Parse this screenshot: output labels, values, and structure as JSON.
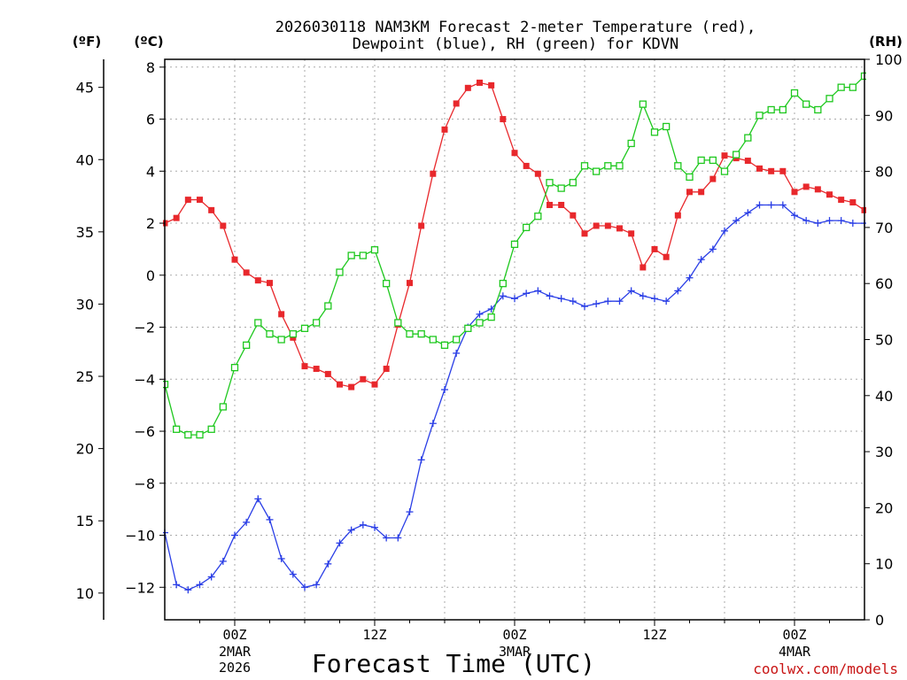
{
  "chart_data": {
    "type": "line",
    "title_line1": "2026030118 NAM3KM Forecast 2-meter Temperature (red),",
    "title_line2": "Dewpoint (blue), RH (green) for KDVN",
    "xlabel": "Forecast Time (UTC)",
    "watermark": "coolwx.com/models",
    "units": {
      "fahrenheit": "(ºF)",
      "celsius": "(ºC)",
      "rh": "(RH)"
    },
    "x_hours_range": [
      -6,
      54
    ],
    "x_ticks": [
      {
        "hour": 0,
        "label": "00Z",
        "sub1": "2MAR",
        "sub2": "2026"
      },
      {
        "hour": 12,
        "label": "12Z",
        "sub1": "",
        "sub2": ""
      },
      {
        "hour": 24,
        "label": "00Z",
        "sub1": "3MAR",
        "sub2": ""
      },
      {
        "hour": 36,
        "label": "12Z",
        "sub1": "",
        "sub2": ""
      },
      {
        "hour": 48,
        "label": "00Z",
        "sub1": "4MAR",
        "sub2": ""
      }
    ],
    "celsius_axis": {
      "range": [
        -13.25,
        8.3
      ],
      "ticks": [
        8,
        6,
        4,
        2,
        0,
        -2,
        -4,
        -6,
        -8,
        -10,
        -12
      ]
    },
    "fahrenheit_axis": {
      "ticks": [
        45,
        40,
        35,
        30,
        25,
        20,
        15,
        10
      ]
    },
    "rh_axis": {
      "range": [
        0,
        100
      ],
      "ticks": [
        100,
        90,
        80,
        70,
        60,
        50,
        40,
        30,
        20,
        10,
        0
      ]
    },
    "grid": true,
    "colors": {
      "temperature": "#e8282c",
      "dewpoint": "#2a3ee6",
      "rh": "#1ec81e",
      "watermark": "#c81414"
    },
    "series": [
      {
        "name": "Temperature",
        "axis": "celsius",
        "marker": "filled-square",
        "x": [
          -6,
          -5,
          -4,
          -3,
          -2,
          -1,
          0,
          1,
          2,
          3,
          4,
          5,
          6,
          7,
          8,
          9,
          10,
          11,
          12,
          13,
          14,
          15,
          16,
          17,
          18,
          19,
          20,
          21,
          22,
          23,
          24,
          25,
          26,
          27,
          28,
          29,
          30,
          31,
          32,
          33,
          34,
          35,
          36,
          37,
          38,
          39,
          40,
          41,
          42,
          43,
          44,
          45,
          46,
          47,
          48,
          49,
          50,
          51,
          52,
          53,
          54
        ],
        "values": [
          2.0,
          2.2,
          2.9,
          2.9,
          2.5,
          1.9,
          0.6,
          0.1,
          -0.2,
          -0.3,
          -1.5,
          -2.4,
          -3.5,
          -3.6,
          -3.8,
          -4.2,
          -4.3,
          -4.0,
          -4.2,
          -3.6,
          -1.9,
          -0.3,
          1.9,
          3.9,
          5.6,
          6.6,
          7.2,
          7.4,
          7.3,
          6.0,
          4.7,
          4.2,
          3.9,
          2.7,
          2.7,
          2.3,
          1.6,
          1.9,
          1.9,
          1.8,
          1.6,
          0.3,
          1.0,
          0.7,
          2.3,
          3.2,
          3.2,
          3.7,
          4.6,
          4.5,
          4.4,
          4.1,
          4.0,
          4.0,
          3.2,
          3.4,
          3.3,
          3.1,
          2.9,
          2.8,
          2.5
        ]
      },
      {
        "name": "Dewpoint",
        "axis": "celsius",
        "marker": "plus",
        "x": [
          -6,
          -5,
          -4,
          -3,
          -2,
          -1,
          0,
          1,
          2,
          3,
          4,
          5,
          6,
          7,
          8,
          9,
          10,
          11,
          12,
          13,
          14,
          15,
          16,
          17,
          18,
          19,
          20,
          21,
          22,
          23,
          24,
          25,
          26,
          27,
          28,
          29,
          30,
          31,
          32,
          33,
          34,
          35,
          36,
          37,
          38,
          39,
          40,
          41,
          42,
          43,
          44,
          45,
          46,
          47,
          48,
          49,
          50,
          51,
          52,
          53,
          54
        ],
        "values": [
          -9.9,
          -11.9,
          -12.1,
          -11.9,
          -11.6,
          -11.0,
          -10.0,
          -9.5,
          -8.6,
          -9.4,
          -10.9,
          -11.5,
          -12.0,
          -11.9,
          -11.1,
          -10.3,
          -9.8,
          -9.6,
          -9.7,
          -10.1,
          -10.1,
          -9.1,
          -7.1,
          -5.7,
          -4.4,
          -3.0,
          -2.0,
          -1.5,
          -1.3,
          -0.8,
          -0.9,
          -0.7,
          -0.6,
          -0.8,
          -0.9,
          -1.0,
          -1.2,
          -1.1,
          -1.0,
          -1.0,
          -0.6,
          -0.8,
          -0.9,
          -1.0,
          -0.6,
          -0.1,
          0.6,
          1.0,
          1.7,
          2.1,
          2.4,
          2.7,
          2.7,
          2.7,
          2.3,
          2.1,
          2.0,
          2.1,
          2.1,
          2.0,
          2.0
        ]
      },
      {
        "name": "RH",
        "axis": "rh",
        "marker": "open-square",
        "x": [
          -6,
          -5,
          -4,
          -3,
          -2,
          -1,
          0,
          1,
          2,
          3,
          4,
          5,
          6,
          7,
          8,
          9,
          10,
          11,
          12,
          13,
          14,
          15,
          16,
          17,
          18,
          19,
          20,
          21,
          22,
          23,
          24,
          25,
          26,
          27,
          28,
          29,
          30,
          31,
          32,
          33,
          34,
          35,
          36,
          37,
          38,
          39,
          40,
          41,
          42,
          43,
          44,
          45,
          46,
          47,
          48,
          49,
          50,
          51,
          52,
          53,
          54
        ],
        "values": [
          42,
          34,
          33,
          33,
          34,
          38,
          45,
          49,
          53,
          51,
          50,
          51,
          52,
          53,
          56,
          62,
          65,
          65,
          66,
          60,
          53,
          51,
          51,
          50,
          49,
          50,
          52,
          53,
          54,
          60,
          67,
          70,
          72,
          78,
          77,
          78,
          81,
          80,
          81,
          81,
          85,
          92,
          87,
          88,
          81,
          79,
          82,
          82,
          80,
          83,
          86,
          90,
          91,
          91,
          94,
          92,
          91,
          93,
          95,
          95,
          97
        ]
      }
    ]
  }
}
